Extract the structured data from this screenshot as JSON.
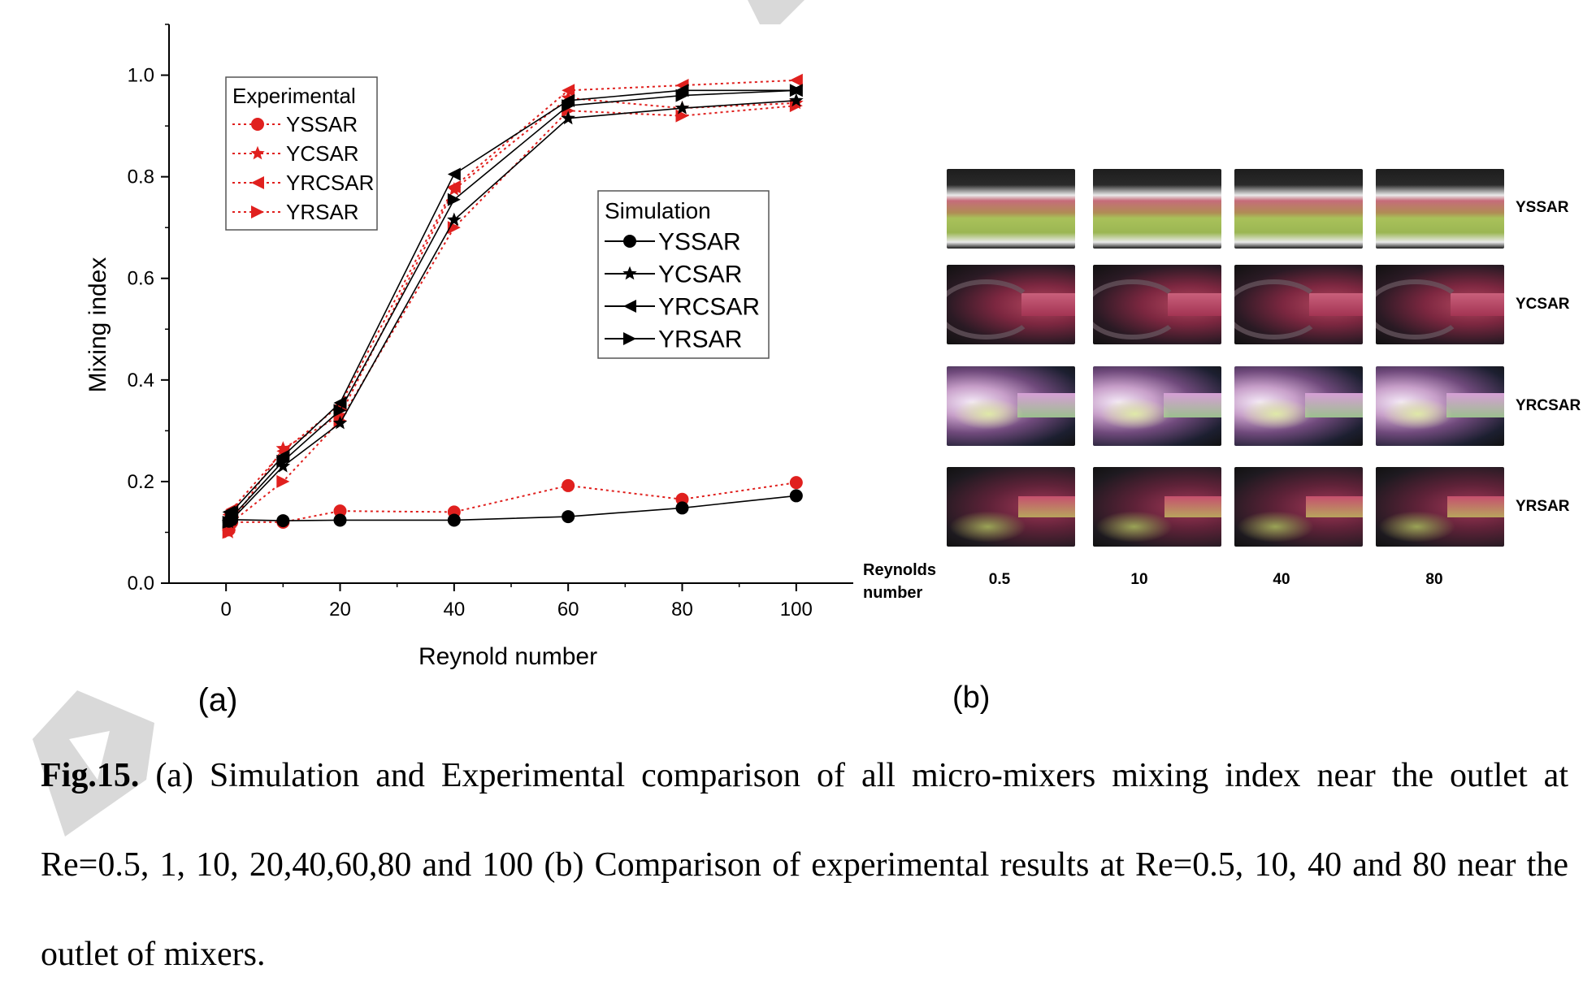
{
  "chart_data": {
    "type": "line",
    "xlabel": "Reynold number",
    "ylabel": "Mixing index",
    "xlim": [
      -10,
      110
    ],
    "ylim": [
      0,
      1.1
    ],
    "xticks": [
      0,
      20,
      40,
      60,
      80,
      100
    ],
    "yticks": [
      "0.0",
      "0.2",
      "0.4",
      "0.6",
      "0.8",
      "1.0"
    ],
    "x": [
      0.5,
      1,
      10,
      20,
      40,
      60,
      80,
      100
    ],
    "legend_groups": [
      {
        "title": "Experimental",
        "placement": "top-left"
      },
      {
        "title": "Simulation",
        "placement": "center-right"
      }
    ],
    "series": [
      {
        "name": "YSSAR",
        "group": "Experimental",
        "marker": "circle",
        "color": "#e0201e",
        "style": "dotted",
        "values": [
          0.105,
          0.12,
          0.12,
          0.142,
          0.14,
          0.192,
          0.165,
          0.198
        ]
      },
      {
        "name": "YCSAR",
        "group": "Experimental",
        "marker": "star",
        "color": "#e0201e",
        "style": "dotted",
        "values": [
          0.1,
          0.12,
          0.265,
          0.33,
          0.775,
          0.955,
          0.935,
          0.945
        ]
      },
      {
        "name": "YRCSAR",
        "group": "Experimental",
        "marker": "triangle-left",
        "color": "#e0201e",
        "style": "dotted",
        "values": [
          0.135,
          0.145,
          0.26,
          0.35,
          0.78,
          0.97,
          0.98,
          0.99
        ]
      },
      {
        "name": "YRSAR",
        "group": "Experimental",
        "marker": "triangle-right",
        "color": "#e0201e",
        "style": "dotted",
        "values": [
          0.1,
          0.12,
          0.2,
          0.32,
          0.7,
          0.93,
          0.92,
          0.94
        ]
      },
      {
        "name": "YSSAR",
        "group": "Simulation",
        "marker": "circle",
        "color": "#000000",
        "style": "solid",
        "values": [
          0.122,
          0.125,
          0.123,
          0.124,
          0.124,
          0.131,
          0.148,
          0.172
        ]
      },
      {
        "name": "YCSAR",
        "group": "Simulation",
        "marker": "star",
        "color": "#000000",
        "style": "solid",
        "values": [
          0.12,
          0.125,
          0.23,
          0.315,
          0.715,
          0.915,
          0.935,
          0.95
        ]
      },
      {
        "name": "YRCSAR",
        "group": "Simulation",
        "marker": "triangle-left",
        "color": "#000000",
        "style": "solid",
        "values": [
          0.14,
          0.14,
          0.25,
          0.355,
          0.805,
          0.95,
          0.97,
          0.97
        ]
      },
      {
        "name": "YRSAR",
        "group": "Simulation",
        "marker": "triangle-right",
        "color": "#000000",
        "style": "solid",
        "values": [
          0.12,
          0.13,
          0.24,
          0.34,
          0.755,
          0.94,
          0.96,
          0.97
        ]
      }
    ],
    "grid": false,
    "panel_label": "(a)"
  },
  "panel_b": {
    "panel_label": "(b)",
    "row_labels": [
      "YSSAR",
      "YCSAR",
      "YRCSAR",
      "YRSAR"
    ],
    "col_title_line1": "Reynolds",
    "col_title_line2": "number",
    "col_labels": [
      "0.5",
      "10",
      "40",
      "80"
    ]
  },
  "caption": {
    "fig_num": "Fig.15.",
    "text": " (a) Simulation and Experimental comparison of all micro-mixers mixing index near the outlet at Re=0.5, 1, 10, 20,40,60,80 and 100 (b) Comparison of experimental results at Re=0.5, 10, 40 and 80 near the outlet of mixers."
  },
  "colors": {
    "experimental": "#e0201e",
    "simulation": "#000000",
    "watermark": "#c8c8c8"
  }
}
